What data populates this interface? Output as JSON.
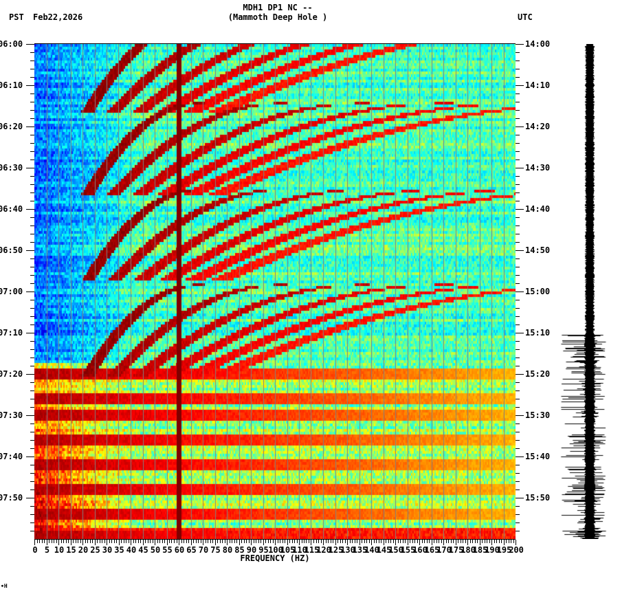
{
  "header": {
    "station_line": "MDH1 DP1 NC --",
    "station_name": "(Mammoth Deep Hole )",
    "left_timezone": "PST",
    "date": "Feb22,2026",
    "right_timezone": "UTC"
  },
  "corner_mark": "∙Н",
  "chart_data": {
    "type": "heatmap",
    "title": "MDH1 DP1 NC -- (Mammoth Deep Hole )",
    "subtitle": "Feb22,2026",
    "xlabel": "FREQUENCY (HZ)",
    "ylabel_left": "PST",
    "ylabel_right": "UTC",
    "xlim": [
      0,
      200
    ],
    "x_ticks": [
      "0",
      "5",
      "10",
      "15",
      "20",
      "25",
      "30",
      "35",
      "40",
      "45",
      "50",
      "55",
      "60",
      "65",
      "70",
      "75",
      "80",
      "85",
      "90",
      "95",
      "100",
      "105",
      "110",
      "115",
      "120",
      "125",
      "130",
      "135",
      "140",
      "145",
      "150",
      "155",
      "160",
      "165",
      "170",
      "175",
      "180",
      "185",
      "190",
      "195",
      "200"
    ],
    "x_minor_tick_step_hz": 1,
    "y_ticks_left": [
      "06:00",
      "06:10",
      "06:20",
      "06:30",
      "06:40",
      "06:50",
      "07:00",
      "07:10",
      "07:20",
      "07:30",
      "07:40",
      "07:50"
    ],
    "y_ticks_right": [
      "14:00",
      "14:10",
      "14:20",
      "14:30",
      "14:40",
      "14:50",
      "15:00",
      "15:10",
      "15:20",
      "15:30",
      "15:40",
      "15:50"
    ],
    "y_minor_tick_step_min": 2,
    "time_span_minutes": 120,
    "colormap": "jet",
    "grid": {
      "vertical_lines_every_hz": 5,
      "color": "#808080"
    },
    "features": {
      "constant_line_hz": 60,
      "noise_onset_pst": "07:17",
      "gliding_harmonics": {
        "cycles_start_min": [
          -6,
          14,
          35,
          58
        ],
        "cycle_length_min": 22,
        "fundamental_start_hz": 68,
        "fundamental_end_hz": 22,
        "harmonic_count": 6
      },
      "horizontal_bands_pst_min": [
        79.5,
        85.5,
        89.5,
        95.5,
        101.5,
        107.5,
        113.5,
        119
      ]
    },
    "side_panel": {
      "type": "seismogram_trace",
      "quiet_until_pst": "07:10",
      "color": "#000000"
    }
  }
}
